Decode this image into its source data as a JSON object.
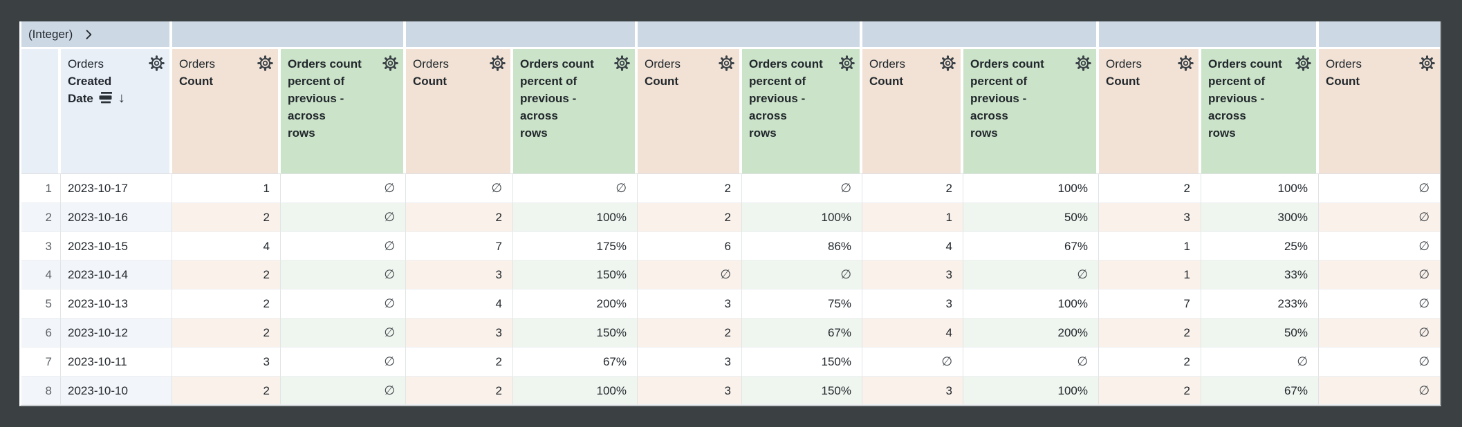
{
  "pivot_band": {
    "label": "(Integer)",
    "expand_icon": "chevron-right-icon"
  },
  "icons": {
    "header_menu": "gear-icon",
    "sort_desc_arrow": "↓",
    "section_bars": "section-bars-icon"
  },
  "columns": [
    {
      "kind": "rownum",
      "header_label": ""
    },
    {
      "kind": "dimension",
      "view": "Orders",
      "field": "Created Date",
      "sorted": "descending"
    },
    {
      "kind": "measure",
      "view": "Orders",
      "field": "Count"
    },
    {
      "kind": "calc",
      "label": "Orders count percent of previous - across rows"
    },
    {
      "kind": "measure",
      "view": "Orders",
      "field": "Count"
    },
    {
      "kind": "calc",
      "label": "Orders count percent of previous - across rows"
    },
    {
      "kind": "measure",
      "view": "Orders",
      "field": "Count"
    },
    {
      "kind": "calc",
      "label": "Orders count percent of previous - across rows"
    },
    {
      "kind": "measure",
      "view": "Orders",
      "field": "Count"
    },
    {
      "kind": "calc",
      "label": "Orders count percent of previous - across rows"
    },
    {
      "kind": "measure",
      "view": "Orders",
      "field": "Count"
    },
    {
      "kind": "calc",
      "label": "Orders count percent of previous - across rows"
    },
    {
      "kind": "measure",
      "view": "Orders",
      "field": "Count"
    }
  ],
  "null_symbol": "∅",
  "rows": [
    {
      "num": "1",
      "date": "2023-10-17",
      "values": [
        "1",
        "∅",
        "∅",
        "∅",
        "2",
        "∅",
        "2",
        "100%",
        "2",
        "100%",
        "∅"
      ]
    },
    {
      "num": "2",
      "date": "2023-10-16",
      "values": [
        "2",
        "∅",
        "2",
        "100%",
        "2",
        "100%",
        "1",
        "50%",
        "3",
        "300%",
        "∅"
      ]
    },
    {
      "num": "3",
      "date": "2023-10-15",
      "values": [
        "4",
        "∅",
        "7",
        "175%",
        "6",
        "86%",
        "4",
        "67%",
        "1",
        "25%",
        "∅"
      ]
    },
    {
      "num": "4",
      "date": "2023-10-14",
      "values": [
        "2",
        "∅",
        "3",
        "150%",
        "∅",
        "∅",
        "3",
        "∅",
        "1",
        "33%",
        "∅"
      ]
    },
    {
      "num": "5",
      "date": "2023-10-13",
      "values": [
        "2",
        "∅",
        "4",
        "200%",
        "3",
        "75%",
        "3",
        "100%",
        "7",
        "233%",
        "∅"
      ]
    },
    {
      "num": "6",
      "date": "2023-10-12",
      "values": [
        "2",
        "∅",
        "3",
        "150%",
        "2",
        "67%",
        "4",
        "200%",
        "2",
        "50%",
        "∅"
      ]
    },
    {
      "num": "7",
      "date": "2023-10-11",
      "values": [
        "3",
        "∅",
        "2",
        "67%",
        "3",
        "150%",
        "∅",
        "∅",
        "2",
        "∅",
        "∅"
      ]
    },
    {
      "num": "8",
      "date": "2023-10-10",
      "values": [
        "2",
        "∅",
        "2",
        "100%",
        "3",
        "150%",
        "3",
        "100%",
        "2",
        "67%",
        "∅"
      ]
    }
  ],
  "colors": {
    "frame": "#3b4043",
    "band_bg": "#cdd8e5",
    "dimension_header_bg": "#e9eff7",
    "measure_header_bg": "#f2e2d5",
    "calc_header_bg": "#cbe3c8",
    "dimension_tint": "#f2f5f9",
    "measure_tint": "#faf1ea",
    "calc_tint": "#eff6ef",
    "text": "#21272c",
    "rownum_text": "#5d6266",
    "null_text": "#41474c",
    "grid_v": "#e1e4e6",
    "grid_h": "#edeff1"
  }
}
